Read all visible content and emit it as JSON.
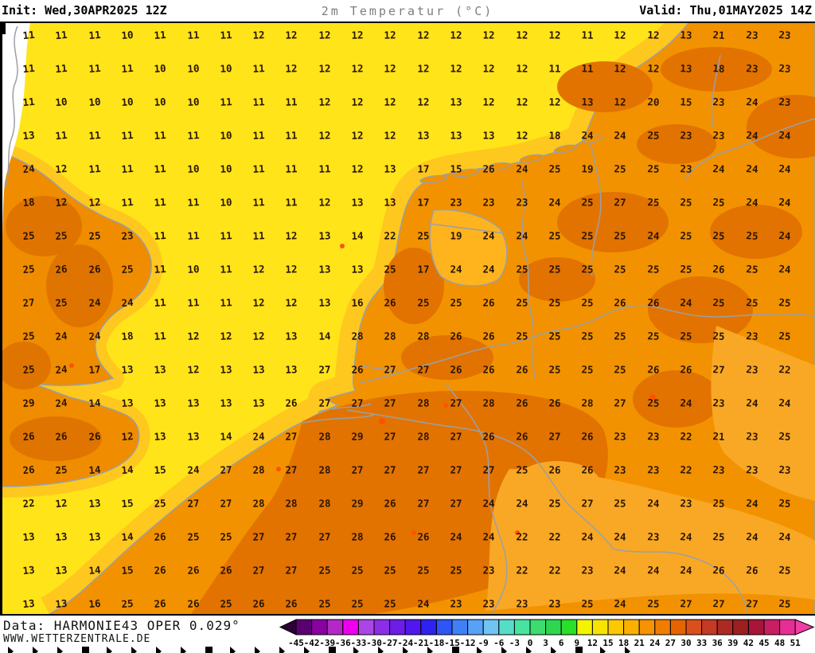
{
  "header": {
    "init_label": "Init: Wed,30APR2025 12Z",
    "title": "2m Temperatur (°C)",
    "valid_label": "Valid: Thu,01MAY2025 14Z"
  },
  "footer": {
    "data_line": "Data: HARMONIE43 OPER 0.029°",
    "site_line": "WWW.WETTERZENTRALE.DE"
  },
  "colorbar": {
    "tick_labels": [
      "-45",
      "-42",
      "-39",
      "-36",
      "-33",
      "-30",
      "-27",
      "-24",
      "-21",
      "-18",
      "-15",
      "-12",
      "-9",
      "-6",
      "-3",
      "0",
      "3",
      "6",
      "9",
      "12",
      "15",
      "18",
      "21",
      "24",
      "27",
      "30",
      "33",
      "36",
      "39",
      "42",
      "45",
      "48",
      "51"
    ],
    "segment_colors": [
      "#5a0070",
      "#8a00a0",
      "#b428c8",
      "#ee00ee",
      "#aa46e6",
      "#8c2ee8",
      "#6e1ce8",
      "#5018ee",
      "#2e22f0",
      "#2e55f5",
      "#4080f7",
      "#55a2f7",
      "#70c4f2",
      "#55ddc8",
      "#46e4a0",
      "#3cdc6e",
      "#2ed650",
      "#28e028",
      "#f4f400",
      "#f6e400",
      "#fcc800",
      "#fbb000",
      "#f79200",
      "#ef7d00",
      "#e66400",
      "#da4f1e",
      "#c43a24",
      "#ad2a24",
      "#9c2020",
      "#a81538",
      "#c81e64",
      "#e62e96"
    ],
    "left_arrow_color": "#2d0038",
    "right_arrow_color": "#f23da5",
    "label_color": "#000000"
  },
  "map": {
    "unit": "°C",
    "colors": {
      "sea_yellow": "#ffe41a",
      "coastal_band": "#ffc81e",
      "ijsselmeer": "#ffb41e",
      "land_orange": "#f29200",
      "land_light": "#f9a825",
      "land_dark": "#e27300",
      "england_orange": "#ef8c00",
      "england_dark": "#e07400",
      "hot_spot": "#ff5200",
      "outside_domain": "#ffffff",
      "coast_line": "#9aa0a8",
      "number_color": "#2b1500"
    },
    "grid": {
      "cols": 24,
      "rows": 18,
      "values": [
        [
          11,
          11,
          11,
          10,
          11,
          11,
          11,
          12,
          12,
          12,
          12,
          12,
          12,
          12,
          12,
          12,
          12,
          11,
          12,
          12,
          13,
          21,
          23,
          23
        ],
        [
          11,
          11,
          11,
          11,
          10,
          10,
          10,
          11,
          12,
          12,
          12,
          12,
          12,
          12,
          12,
          12,
          11,
          11,
          12,
          12,
          13,
          18,
          23,
          23
        ],
        [
          11,
          10,
          10,
          10,
          10,
          10,
          11,
          11,
          11,
          12,
          12,
          12,
          12,
          13,
          12,
          12,
          12,
          13,
          12,
          20,
          15,
          23,
          24,
          23
        ],
        [
          13,
          11,
          11,
          11,
          11,
          11,
          10,
          11,
          11,
          12,
          12,
          12,
          13,
          13,
          13,
          12,
          18,
          24,
          24,
          25,
          23,
          23,
          24,
          24
        ],
        [
          24,
          12,
          11,
          11,
          11,
          10,
          10,
          11,
          11,
          11,
          12,
          13,
          17,
          15,
          26,
          24,
          25,
          19,
          25,
          25,
          23,
          24,
          24,
          24
        ],
        [
          18,
          12,
          12,
          11,
          11,
          11,
          10,
          11,
          11,
          12,
          13,
          13,
          17,
          23,
          23,
          23,
          24,
          25,
          27,
          25,
          25,
          25,
          24,
          24
        ],
        [
          25,
          25,
          25,
          23,
          11,
          11,
          11,
          11,
          12,
          13,
          14,
          22,
          25,
          19,
          24,
          24,
          25,
          25,
          25,
          24,
          25,
          25,
          25,
          24
        ],
        [
          25,
          26,
          26,
          25,
          11,
          10,
          11,
          12,
          12,
          13,
          13,
          25,
          17,
          24,
          24,
          25,
          25,
          25,
          25,
          25,
          25,
          26,
          25,
          24
        ],
        [
          27,
          25,
          24,
          24,
          11,
          11,
          11,
          12,
          12,
          13,
          16,
          26,
          25,
          25,
          26,
          25,
          25,
          25,
          26,
          26,
          24,
          25,
          25,
          25
        ],
        [
          25,
          24,
          24,
          18,
          11,
          12,
          12,
          12,
          13,
          14,
          28,
          28,
          28,
          26,
          26,
          25,
          25,
          25,
          25,
          25,
          25,
          25,
          23,
          25
        ],
        [
          25,
          24,
          17,
          13,
          13,
          12,
          13,
          13,
          13,
          27,
          26,
          27,
          27,
          26,
          26,
          26,
          25,
          25,
          25,
          26,
          26,
          27,
          23,
          22
        ],
        [
          29,
          24,
          14,
          13,
          13,
          13,
          13,
          13,
          26,
          27,
          27,
          27,
          28,
          27,
          28,
          26,
          26,
          28,
          27,
          25,
          24,
          23,
          24,
          24
        ],
        [
          26,
          26,
          26,
          12,
          13,
          13,
          14,
          24,
          27,
          28,
          29,
          27,
          28,
          27,
          26,
          26,
          27,
          26,
          23,
          23,
          22,
          21,
          23,
          25
        ],
        [
          26,
          25,
          14,
          14,
          15,
          24,
          27,
          28,
          27,
          28,
          27,
          27,
          27,
          27,
          27,
          25,
          26,
          26,
          23,
          23,
          22,
          23,
          23,
          23
        ],
        [
          22,
          12,
          13,
          15,
          25,
          27,
          27,
          28,
          28,
          28,
          29,
          26,
          27,
          27,
          24,
          24,
          25,
          27,
          25,
          24,
          23,
          25,
          24,
          25
        ],
        [
          13,
          13,
          13,
          14,
          26,
          25,
          25,
          27,
          27,
          27,
          28,
          26,
          26,
          24,
          24,
          22,
          22,
          24,
          24,
          23,
          24,
          25,
          24,
          24
        ],
        [
          13,
          13,
          14,
          15,
          26,
          26,
          26,
          27,
          27,
          25,
          25,
          25,
          25,
          25,
          23,
          22,
          22,
          23,
          24,
          24,
          24,
          26,
          26,
          25
        ],
        [
          13,
          13,
          16,
          25,
          26,
          26,
          25,
          26,
          26,
          25,
          25,
          25,
          24,
          23,
          23,
          23,
          23,
          25,
          24,
          25,
          27,
          27,
          27,
          25
        ]
      ]
    }
  }
}
